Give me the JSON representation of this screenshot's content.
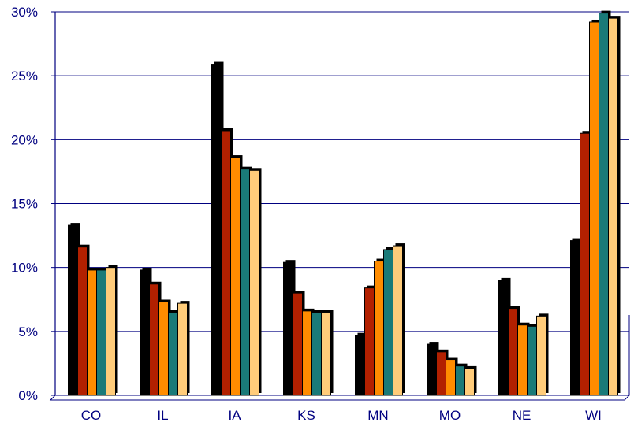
{
  "chart_data": {
    "type": "bar",
    "categories": [
      "CO",
      "IL",
      "IA",
      "KS",
      "MN",
      "MO",
      "NE",
      "WI"
    ],
    "series": [
      {
        "values": [
          13.3,
          9.8,
          25.9,
          10.4,
          4.7,
          4.0,
          9.0,
          12.1
        ],
        "color": "#000000"
      },
      {
        "values": [
          11.6,
          8.7,
          20.7,
          8.0,
          8.4,
          3.4,
          6.8,
          20.5
        ],
        "color": "#b22000"
      },
      {
        "values": [
          9.8,
          7.3,
          18.6,
          6.6,
          10.5,
          2.8,
          5.5,
          29.2
        ],
        "color": "#ff8c00"
      },
      {
        "values": [
          9.8,
          6.5,
          17.7,
          6.5,
          11.4,
          2.3,
          5.4,
          29.9
        ],
        "color": "#1a7a78"
      },
      {
        "values": [
          10.0,
          7.2,
          17.6,
          6.5,
          11.7,
          2.1,
          6.2,
          29.5
        ],
        "color": "#ffcc7a"
      }
    ],
    "y_tick_labels": [
      "0%",
      "5%",
      "10%",
      "15%",
      "20%",
      "25%",
      "30%"
    ],
    "y_ticks": [
      0,
      5,
      10,
      15,
      20,
      25,
      30
    ],
    "ylim": [
      0,
      30
    ],
    "grid": true,
    "legend": "none",
    "axis_color": "#000080",
    "label_color": "#000080",
    "title": "",
    "xlabel": "",
    "ylabel": ""
  }
}
